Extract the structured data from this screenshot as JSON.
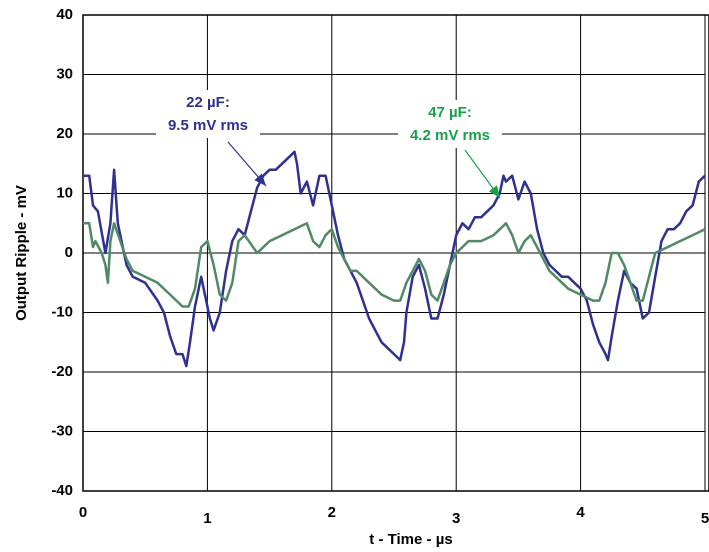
{
  "chart_data": {
    "type": "line",
    "xlabel": "t - Time - µs",
    "ylabel": "Output Ripple - mV",
    "xlim": [
      0,
      5
    ],
    "ylim": [
      -40,
      40
    ],
    "xticks": [
      0,
      1,
      2,
      3,
      4,
      5
    ],
    "yticks": [
      -40,
      -30,
      -20,
      -10,
      0,
      10,
      20,
      30,
      40
    ],
    "grid": true,
    "series": [
      {
        "name": "22 µF",
        "color": "#2e3192",
        "x": [
          0,
          0.05,
          0.08,
          0.12,
          0.18,
          0.22,
          0.25,
          0.28,
          0.3,
          0.35,
          0.4,
          0.5,
          0.6,
          0.65,
          0.7,
          0.75,
          0.8,
          0.83,
          0.86,
          0.9,
          0.95,
          0.98,
          1.02,
          1.05,
          1.1,
          1.15,
          1.2,
          1.25,
          1.3,
          1.35,
          1.4,
          1.45,
          1.5,
          1.55,
          1.6,
          1.65,
          1.7,
          1.72,
          1.75,
          1.8,
          1.85,
          1.9,
          1.95,
          2.0,
          2.05,
          2.1,
          2.15,
          2.2,
          2.25,
          2.3,
          2.35,
          2.4,
          2.45,
          2.5,
          2.55,
          2.58,
          2.6,
          2.65,
          2.7,
          2.75,
          2.8,
          2.85,
          2.9,
          2.95,
          3.0,
          3.05,
          3.1,
          3.15,
          3.2,
          3.25,
          3.3,
          3.35,
          3.38,
          3.4,
          3.45,
          3.5,
          3.55,
          3.6,
          3.65,
          3.7,
          3.75,
          3.8,
          3.85,
          3.9,
          3.95,
          4.0,
          4.05,
          4.1,
          4.15,
          4.2,
          4.22,
          4.25,
          4.3,
          4.35,
          4.4,
          4.45,
          4.5,
          4.55,
          4.6,
          4.65,
          4.7,
          4.75,
          4.8,
          4.85,
          4.9,
          4.95,
          5.0
        ],
        "values": [
          13,
          13,
          8,
          7,
          0,
          5,
          14,
          5,
          3,
          -2,
          -4,
          -5,
          -8,
          -10,
          -14,
          -17,
          -17,
          -19,
          -15,
          -9,
          -4,
          -7,
          -11,
          -13,
          -10,
          -3,
          2,
          4,
          3,
          7,
          11,
          13,
          14,
          14,
          15,
          16,
          17,
          15,
          10,
          12,
          8,
          13,
          13,
          8,
          3,
          -1,
          -3,
          -5,
          -8,
          -11,
          -13,
          -15,
          -16,
          -17,
          -18,
          -15,
          -10,
          -4,
          -2,
          -6,
          -11,
          -11,
          -7,
          -2,
          3,
          5,
          4,
          6,
          6,
          7,
          8,
          10,
          13,
          12,
          13,
          9,
          12,
          10,
          4,
          0,
          -2,
          -3,
          -4,
          -4,
          -5,
          -6,
          -8,
          -12,
          -15,
          -17,
          -18,
          -14,
          -8,
          -3,
          -5,
          -6,
          -11,
          -10,
          -4,
          2,
          4,
          4,
          5,
          7,
          8,
          12,
          13
        ]
      },
      {
        "name": "47 µF",
        "color": "#4f8a64",
        "x": [
          0,
          0.05,
          0.08,
          0.1,
          0.15,
          0.18,
          0.2,
          0.22,
          0.25,
          0.3,
          0.35,
          0.4,
          0.5,
          0.6,
          0.7,
          0.8,
          0.85,
          0.9,
          0.95,
          1.0,
          1.05,
          1.1,
          1.15,
          1.2,
          1.25,
          1.3,
          1.4,
          1.5,
          1.6,
          1.7,
          1.8,
          1.85,
          1.9,
          1.95,
          2.0,
          2.05,
          2.1,
          2.15,
          2.2,
          2.3,
          2.4,
          2.5,
          2.55,
          2.6,
          2.65,
          2.7,
          2.75,
          2.8,
          2.85,
          2.9,
          2.95,
          3.0,
          3.05,
          3.1,
          3.2,
          3.3,
          3.4,
          3.45,
          3.5,
          3.55,
          3.6,
          3.7,
          3.75,
          3.8,
          3.9,
          4.0,
          4.1,
          4.15,
          4.2,
          4.25,
          4.3,
          4.35,
          4.4,
          4.45,
          4.5,
          4.55,
          4.6,
          4.7,
          4.8,
          4.9,
          5.0
        ],
        "values": [
          5,
          5,
          1,
          2,
          0,
          -2,
          -5,
          2,
          5,
          2,
          -1,
          -3,
          -4,
          -5,
          -7,
          -9,
          -9,
          -6,
          1,
          2,
          -2,
          -7,
          -8,
          -5,
          2,
          3,
          0,
          2,
          3,
          4,
          5,
          2,
          1,
          3,
          4,
          1,
          -1,
          -3,
          -3,
          -5,
          -7,
          -8,
          -8,
          -5,
          -3,
          -1,
          -3,
          -7,
          -8,
          -5,
          -2,
          0,
          1,
          2,
          2,
          3,
          5,
          3,
          0,
          2,
          3,
          -1,
          -3,
          -4,
          -6,
          -7,
          -8,
          -8,
          -5,
          0,
          0,
          -2,
          -5,
          -8,
          -8,
          -4,
          0,
          1,
          2,
          3,
          4
        ]
      }
    ],
    "annotations": [
      {
        "lines": [
          "22 µF:",
          "9.5 mV rms"
        ],
        "color": "#2e3192"
      },
      {
        "lines": [
          "47 µF:",
          "4.2 mV rms"
        ],
        "color": "#1a9e4a"
      }
    ]
  }
}
